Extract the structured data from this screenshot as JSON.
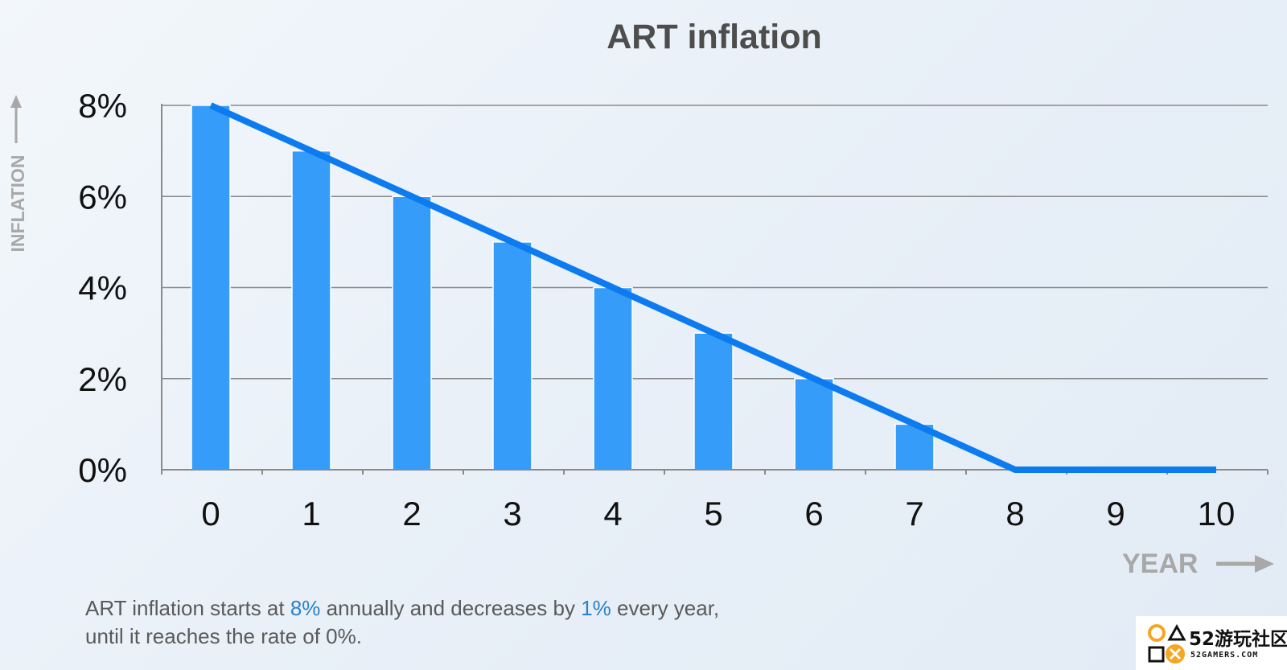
{
  "chart_data": {
    "type": "bar",
    "title": "ART inflation",
    "xlabel": "YEAR",
    "ylabel": "INFLATION",
    "x": [
      0,
      1,
      2,
      3,
      4,
      5,
      6,
      7,
      8,
      9,
      10
    ],
    "x_tick_labels": [
      "0",
      "1",
      "2",
      "3",
      "4",
      "5",
      "6",
      "7",
      "8",
      "9",
      "10"
    ],
    "y_tick_values": [
      0,
      2,
      4,
      6,
      8
    ],
    "y_tick_labels": [
      "0%",
      "2%",
      "4%",
      "6%",
      "8%"
    ],
    "ylim": [
      0,
      8
    ],
    "unit": "%",
    "bar_values": [
      8,
      7,
      6,
      5,
      4,
      3,
      2,
      1,
      0,
      0,
      0
    ],
    "trend_line": [
      [
        0,
        8
      ],
      [
        8,
        0
      ],
      [
        10,
        0
      ]
    ],
    "grid": true,
    "legend": "none",
    "colors": {
      "bar": "#359df9",
      "line": "#0d7bf0",
      "grid": "#8a8a8a",
      "title": "#4d4d4d"
    }
  },
  "caption": {
    "part1": "ART inflation starts at ",
    "hl1": "8%",
    "part2": " annually and decreases by ",
    "hl2": "1%",
    "part3": " every year,",
    "line2": "until it reaches the rate of 0%."
  },
  "watermark": {
    "main": "52游玩社区",
    "sub": "52GAMERS.COM"
  }
}
